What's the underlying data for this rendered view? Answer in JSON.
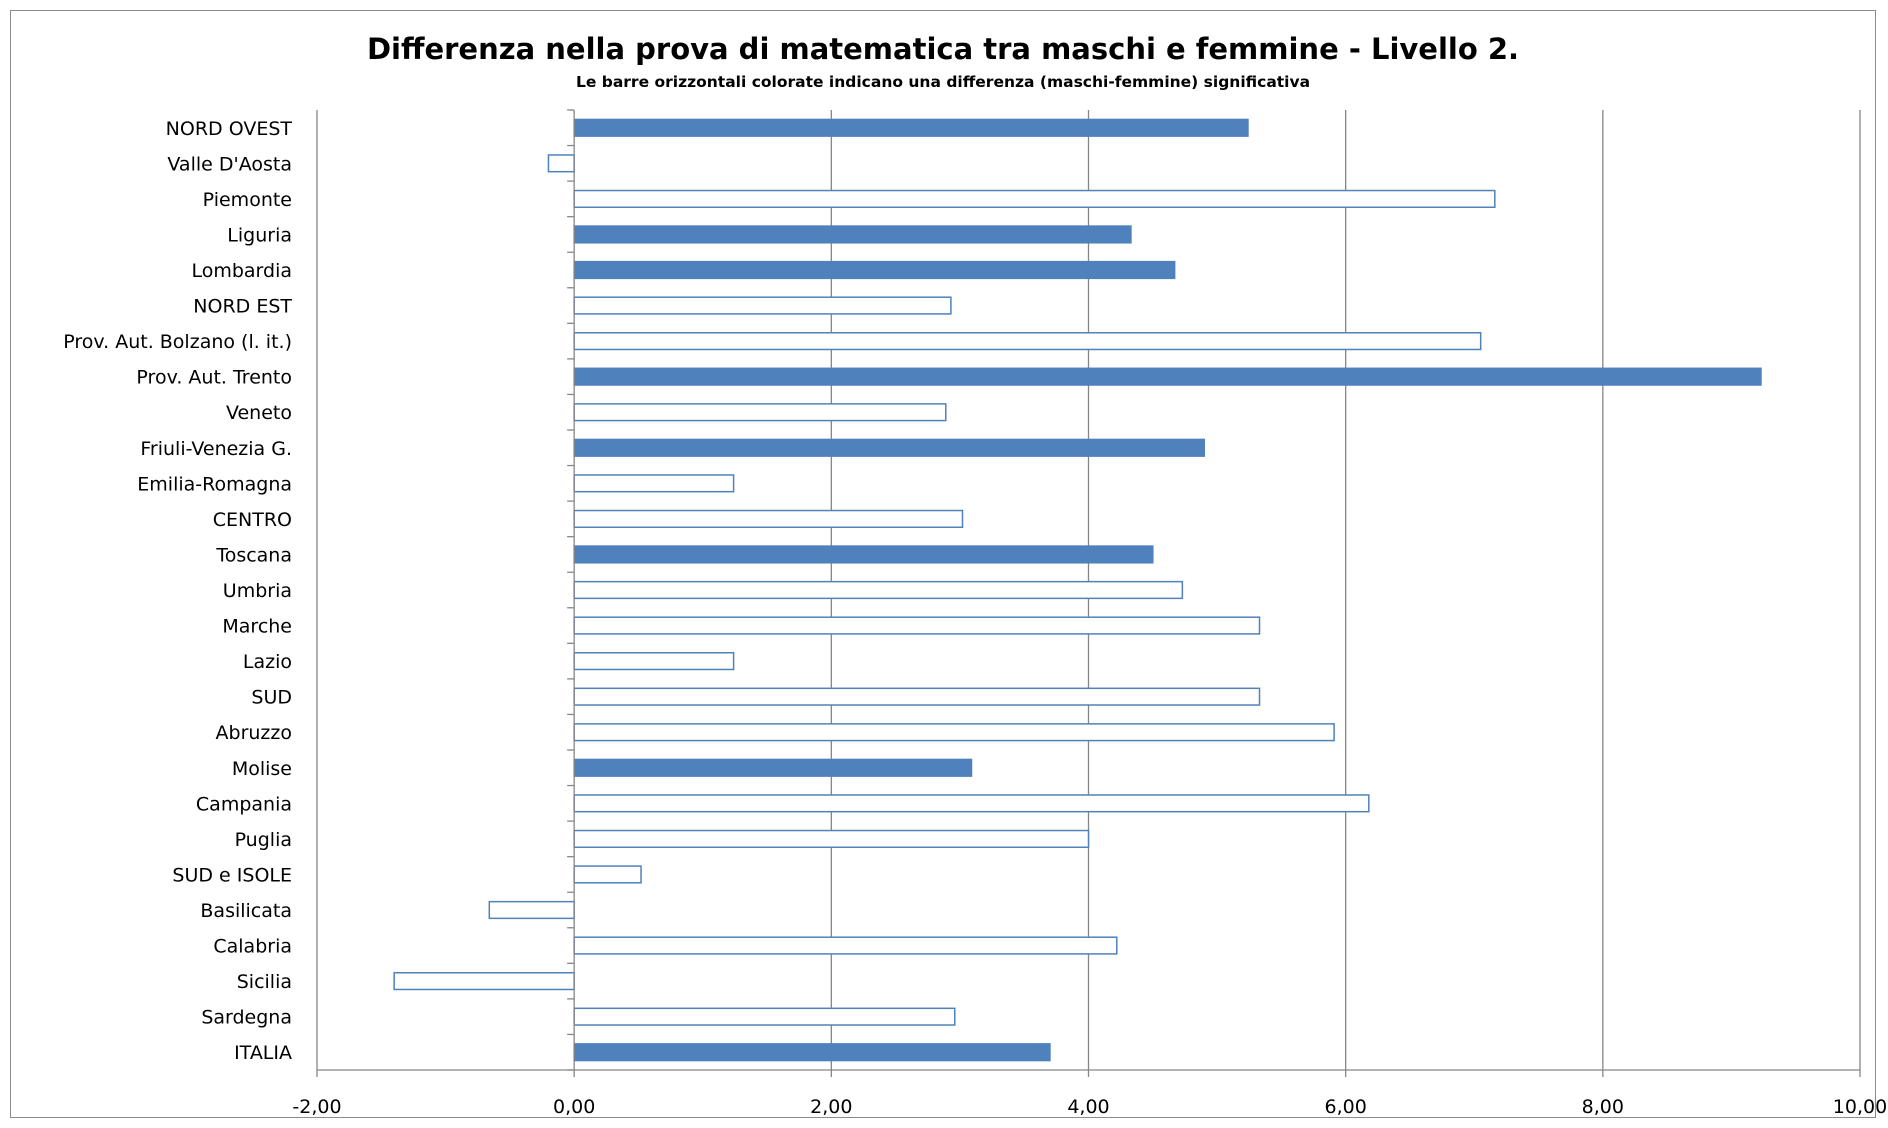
{
  "chart_data": {
    "type": "bar",
    "orientation": "horizontal",
    "title": "Differenza nella prova di matematica tra maschi e femmine - Livello 2.",
    "subtitle": "Le barre orizzontali colorate indicano una differenza (maschi-femmine) significativa",
    "xlabel": "",
    "ylabel": "",
    "xlim": [
      -2,
      10
    ],
    "xticks": [
      -2,
      0,
      2,
      4,
      6,
      8,
      10
    ],
    "xtick_labels": [
      "-2,00",
      "0,00",
      "2,00",
      "4,00",
      "6,00",
      "8,00",
      "10,00"
    ],
    "grid": "vertical major gridlines",
    "legend": "none",
    "colors": {
      "bar": "#4f81bd",
      "grid": "#868686",
      "axis": "#868686"
    },
    "categories": [
      "NORD OVEST",
      "Valle D'Aosta",
      "Piemonte",
      "Liguria",
      "Lombardia",
      "NORD EST",
      "Prov. Aut. Bolzano (l. it.)",
      "Prov. Aut. Trento",
      "Veneto",
      "Friuli-Venezia G.",
      "Emilia-Romagna",
      "CENTRO",
      "Toscana",
      "Umbria",
      "Marche",
      "Lazio",
      "SUD",
      "Abruzzo",
      "Molise",
      "Campania",
      "Puglia",
      "SUD e ISOLE",
      "Basilicata",
      "Calabria",
      "Sicilia",
      "Sardegna",
      "ITALIA"
    ],
    "values": [
      5.24,
      -0.2,
      7.16,
      4.33,
      4.67,
      2.93,
      7.05,
      9.23,
      2.89,
      4.9,
      1.24,
      3.02,
      4.5,
      4.73,
      5.33,
      1.24,
      5.33,
      5.91,
      3.09,
      6.18,
      4.0,
      0.52,
      -0.66,
      4.22,
      -1.4,
      2.96,
      3.7
    ],
    "significant": [
      true,
      false,
      false,
      true,
      true,
      false,
      false,
      true,
      false,
      true,
      false,
      false,
      true,
      false,
      false,
      false,
      false,
      false,
      true,
      false,
      false,
      false,
      false,
      false,
      false,
      false,
      true
    ]
  }
}
